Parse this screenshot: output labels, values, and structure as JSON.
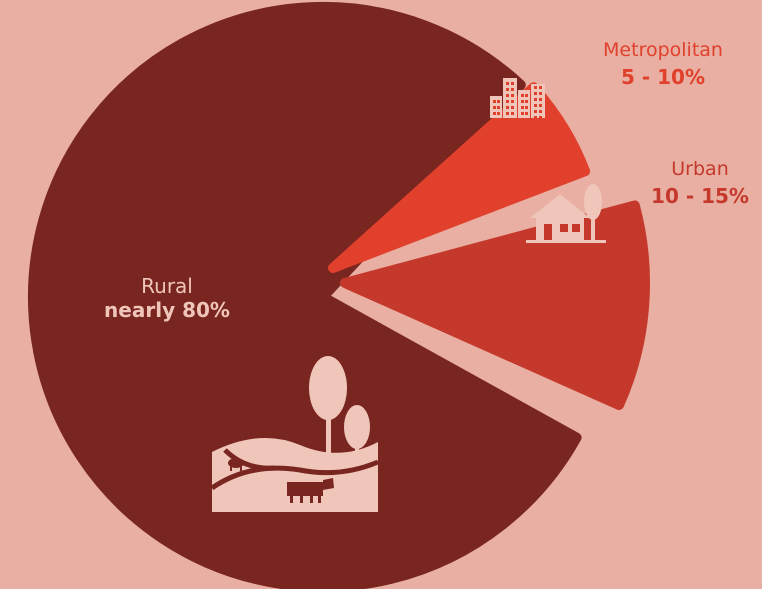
{
  "chart_data": {
    "type": "pie",
    "slices": [
      {
        "label": "Rural",
        "value_text": "nearly 80%",
        "value": 80,
        "color": "#7a2620",
        "icon": "farm-landscape-icon"
      },
      {
        "label": "Urban",
        "value_text": "10 - 15%",
        "value": 12.5,
        "color": "#c5392c",
        "icon": "house-icon"
      },
      {
        "label": "Metropolitan",
        "value_text": "5 - 10%",
        "value": 7.5,
        "color": "#e0402c",
        "icon": "city-buildings-icon"
      }
    ]
  },
  "colors": {
    "background": "#e8afa2",
    "icon_fill": "#f0c6ba"
  }
}
